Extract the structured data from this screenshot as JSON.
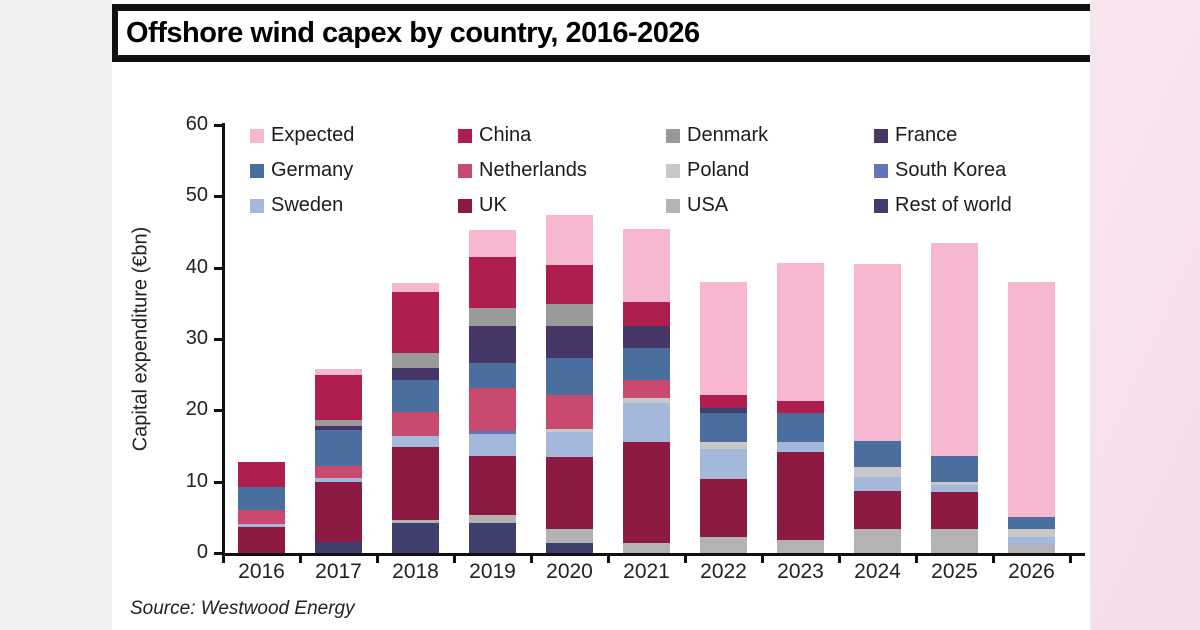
{
  "title": "Offshore wind capex by country, 2016-2026",
  "source": "Source: Westwood Energy",
  "chart_data": {
    "type": "bar",
    "variant": "stacked",
    "title": "Offshore wind capex by country, 2016-2026",
    "ylabel": "Capital expenditure (€bn)",
    "xlabel": "",
    "ylim": [
      0,
      60
    ],
    "yticks": [
      0,
      10,
      20,
      30,
      40,
      50,
      60
    ],
    "grid": false,
    "legend_position": "top-inside",
    "categories": [
      "2016",
      "2017",
      "2018",
      "2019",
      "2020",
      "2021",
      "2022",
      "2023",
      "2024",
      "2025",
      "2026"
    ],
    "legend": [
      {
        "key": "expected",
        "label": "Expected",
        "color": "#F7B7D0"
      },
      {
        "key": "china",
        "label": "China",
        "color": "#B01E4F"
      },
      {
        "key": "denmark",
        "label": "Denmark",
        "color": "#9A9A9A"
      },
      {
        "key": "france",
        "label": "France",
        "color": "#463767"
      },
      {
        "key": "germany",
        "label": "Germany",
        "color": "#4A6E9D"
      },
      {
        "key": "netherlands",
        "label": "Netherlands",
        "color": "#C84A6E"
      },
      {
        "key": "poland",
        "label": "Poland",
        "color": "#C8C8C8"
      },
      {
        "key": "south_korea",
        "label": "South Korea",
        "color": "#6374B8"
      },
      {
        "key": "sweden",
        "label": "Sweden",
        "color": "#A3B8DB"
      },
      {
        "key": "uk",
        "label": "UK",
        "color": "#8C1A42"
      },
      {
        "key": "usa",
        "label": "USA",
        "color": "#B3B3B3"
      },
      {
        "key": "rest_of_world",
        "label": "Rest of world",
        "color": "#3F3F6E"
      }
    ],
    "bars": [
      {
        "year": "2016",
        "total": 12.7,
        "segments": [
          {
            "c": "uk",
            "v": 3.6
          },
          {
            "c": "sweden",
            "v": 0.4
          },
          {
            "c": "netherlands",
            "v": 2.0
          },
          {
            "c": "germany",
            "v": 3.3
          },
          {
            "c": "china",
            "v": 3.4
          }
        ]
      },
      {
        "year": "2017",
        "total": 25.8,
        "segments": [
          {
            "c": "rest_of_world",
            "v": 1.5
          },
          {
            "c": "uk",
            "v": 8.5
          },
          {
            "c": "sweden",
            "v": 0.5
          },
          {
            "c": "netherlands",
            "v": 1.7
          },
          {
            "c": "germany",
            "v": 5.0
          },
          {
            "c": "france",
            "v": 0.6
          },
          {
            "c": "denmark",
            "v": 0.9
          },
          {
            "c": "china",
            "v": 6.3
          },
          {
            "c": "expected",
            "v": 0.8
          }
        ]
      },
      {
        "year": "2018",
        "total": 37.8,
        "segments": [
          {
            "c": "rest_of_world",
            "v": 4.2
          },
          {
            "c": "usa",
            "v": 0.4
          },
          {
            "c": "uk",
            "v": 10.2
          },
          {
            "c": "sweden",
            "v": 1.6
          },
          {
            "c": "netherlands",
            "v": 3.4
          },
          {
            "c": "germany",
            "v": 4.4
          },
          {
            "c": "france",
            "v": 1.7
          },
          {
            "c": "denmark",
            "v": 2.2
          },
          {
            "c": "china",
            "v": 8.5
          },
          {
            "c": "expected",
            "v": 1.2
          }
        ]
      },
      {
        "year": "2019",
        "total": 45.3,
        "segments": [
          {
            "c": "rest_of_world",
            "v": 4.2
          },
          {
            "c": "usa",
            "v": 1.2
          },
          {
            "c": "uk",
            "v": 8.2
          },
          {
            "c": "sweden",
            "v": 3.1
          },
          {
            "c": "south_korea",
            "v": 0.4
          },
          {
            "c": "netherlands",
            "v": 6.0
          },
          {
            "c": "germany",
            "v": 3.5
          },
          {
            "c": "france",
            "v": 5.2
          },
          {
            "c": "denmark",
            "v": 2.6
          },
          {
            "c": "china",
            "v": 7.1
          },
          {
            "c": "expected",
            "v": 3.8
          }
        ]
      },
      {
        "year": "2020",
        "total": 47.4,
        "segments": [
          {
            "c": "rest_of_world",
            "v": 1.4
          },
          {
            "c": "usa",
            "v": 1.9
          },
          {
            "c": "uk",
            "v": 10.2
          },
          {
            "c": "sweden",
            "v": 3.5
          },
          {
            "c": "poland",
            "v": 0.4
          },
          {
            "c": "netherlands",
            "v": 4.7
          },
          {
            "c": "germany",
            "v": 5.3
          },
          {
            "c": "france",
            "v": 4.5
          },
          {
            "c": "denmark",
            "v": 3.0
          },
          {
            "c": "china",
            "v": 5.5
          },
          {
            "c": "expected",
            "v": 7.0
          }
        ]
      },
      {
        "year": "2021",
        "total": 45.4,
        "segments": [
          {
            "c": "usa",
            "v": 1.4
          },
          {
            "c": "uk",
            "v": 14.2
          },
          {
            "c": "sweden",
            "v": 5.4
          },
          {
            "c": "poland",
            "v": 0.7
          },
          {
            "c": "netherlands",
            "v": 2.6
          },
          {
            "c": "germany",
            "v": 4.5
          },
          {
            "c": "france",
            "v": 3.1
          },
          {
            "c": "china",
            "v": 3.3
          },
          {
            "c": "expected",
            "v": 10.2
          }
        ]
      },
      {
        "year": "2022",
        "total": 38.0,
        "segments": [
          {
            "c": "usa",
            "v": 2.3
          },
          {
            "c": "uk",
            "v": 8.1
          },
          {
            "c": "sweden",
            "v": 4.2
          },
          {
            "c": "poland",
            "v": 1.0
          },
          {
            "c": "germany",
            "v": 4.0
          },
          {
            "c": "rest_of_world",
            "v": 0.7
          },
          {
            "c": "china",
            "v": 1.8
          },
          {
            "c": "expected",
            "v": 15.9
          }
        ]
      },
      {
        "year": "2023",
        "total": 40.7,
        "segments": [
          {
            "c": "usa",
            "v": 1.8
          },
          {
            "c": "uk",
            "v": 12.4
          },
          {
            "c": "sweden",
            "v": 1.4
          },
          {
            "c": "germany",
            "v": 4.0
          },
          {
            "c": "china",
            "v": 1.7
          },
          {
            "c": "expected",
            "v": 19.4
          }
        ]
      },
      {
        "year": "2024",
        "total": 40.5,
        "segments": [
          {
            "c": "usa",
            "v": 3.3
          },
          {
            "c": "uk",
            "v": 5.4
          },
          {
            "c": "sweden",
            "v": 1.9
          },
          {
            "c": "poland",
            "v": 1.5
          },
          {
            "c": "germany",
            "v": 3.6
          },
          {
            "c": "expected",
            "v": 24.8
          }
        ]
      },
      {
        "year": "2025",
        "total": 43.5,
        "segments": [
          {
            "c": "usa",
            "v": 3.3
          },
          {
            "c": "uk",
            "v": 5.2
          },
          {
            "c": "sweden",
            "v": 1.1
          },
          {
            "c": "poland",
            "v": 0.4
          },
          {
            "c": "germany",
            "v": 3.6
          },
          {
            "c": "expected",
            "v": 29.9
          }
        ]
      },
      {
        "year": "2026",
        "total": 38.0,
        "segments": [
          {
            "c": "usa",
            "v": 1.1
          },
          {
            "c": "sweden",
            "v": 1.2
          },
          {
            "c": "poland",
            "v": 1.0
          },
          {
            "c": "germany",
            "v": 1.8
          },
          {
            "c": "expected",
            "v": 32.9
          }
        ]
      }
    ],
    "source": "Source: Westwood Energy"
  }
}
